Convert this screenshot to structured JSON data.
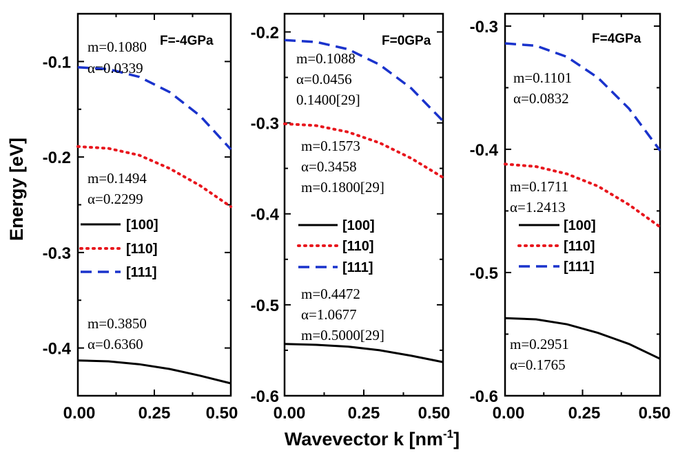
{
  "figure": {
    "ylabel": "Energy [eV]",
    "xlabel_main": "Wavevector k [nm",
    "xlabel_sup": "-1",
    "xlabel_end": "]"
  },
  "legend_entries": [
    "[100]",
    "[110]",
    "[111]"
  ],
  "colors": {
    "s100": "#000000",
    "s110": "#e8161d",
    "s111": "#1a33cc"
  },
  "chart_data": [
    {
      "type": "line",
      "title": "F=-4GPa",
      "xlim": [
        0,
        0.5
      ],
      "ylim": [
        -0.45,
        -0.05
      ],
      "xticks": [
        "0.00",
        "0.25",
        "0.50"
      ],
      "yticks": [
        "-0.1",
        "-0.2",
        "-0.3",
        "-0.4"
      ],
      "ytick_values": [
        -0.1,
        -0.2,
        -0.3,
        -0.4
      ],
      "series": [
        {
          "name": "[100]",
          "style": "solid",
          "x": [
            0,
            0.1,
            0.2,
            0.3,
            0.4,
            0.5
          ],
          "values": [
            -0.413,
            -0.414,
            -0.417,
            -0.422,
            -0.429,
            -0.437
          ]
        },
        {
          "name": "[110]",
          "style": "dotted",
          "x": [
            0,
            0.1,
            0.2,
            0.3,
            0.4,
            0.5
          ],
          "values": [
            -0.189,
            -0.191,
            -0.198,
            -0.212,
            -0.23,
            -0.252
          ]
        },
        {
          "name": "[111]",
          "style": "dashed",
          "x": [
            0,
            0.1,
            0.2,
            0.3,
            0.4,
            0.5
          ],
          "values": [
            -0.106,
            -0.108,
            -0.116,
            -0.132,
            -0.157,
            -0.192
          ]
        }
      ],
      "annotations": [
        [
          "m=0.1080",
          "α=0.0339"
        ],
        [
          "m=0.1494",
          "α=0.2299"
        ],
        [
          "m=0.3850",
          "α=0.6360"
        ]
      ]
    },
    {
      "type": "line",
      "title": "F=0GPa",
      "xlim": [
        0,
        0.5
      ],
      "ylim": [
        -0.6,
        -0.18
      ],
      "xticks": [
        "0.00",
        "0.25",
        "0.50"
      ],
      "yticks": [
        "-0.2",
        "-0.3",
        "-0.4",
        "-0.5",
        "-0.6"
      ],
      "ytick_values": [
        -0.2,
        -0.3,
        -0.4,
        -0.5,
        -0.6
      ],
      "series": [
        {
          "name": "[100]",
          "style": "solid",
          "x": [
            0,
            0.1,
            0.2,
            0.3,
            0.4,
            0.5
          ],
          "values": [
            -0.543,
            -0.544,
            -0.546,
            -0.55,
            -0.556,
            -0.563
          ]
        },
        {
          "name": "[110]",
          "style": "dotted",
          "x": [
            0,
            0.1,
            0.2,
            0.3,
            0.4,
            0.5
          ],
          "values": [
            -0.301,
            -0.303,
            -0.31,
            -0.322,
            -0.339,
            -0.36
          ]
        },
        {
          "name": "[111]",
          "style": "dashed",
          "x": [
            0,
            0.1,
            0.2,
            0.3,
            0.4,
            0.5
          ],
          "values": [
            -0.209,
            -0.211,
            -0.219,
            -0.236,
            -0.262,
            -0.298
          ]
        }
      ],
      "annotations": [
        [
          "m=0.1088",
          "α=0.0456",
          "0.1400[29]"
        ],
        [
          "m=0.1573",
          "α=0.3458",
          "m=0.1800[29]"
        ],
        [
          "m=0.4472",
          "α=1.0677",
          "m=0.5000[29]"
        ]
      ]
    },
    {
      "type": "line",
      "title": "F=4GPa",
      "xlim": [
        0,
        0.5
      ],
      "ylim": [
        -0.6,
        -0.29
      ],
      "xticks": [
        "0.00",
        "0.25",
        "0.50"
      ],
      "yticks": [
        "-0.3",
        "-0.4",
        "-0.5",
        "-0.6"
      ],
      "ytick_values": [
        -0.3,
        -0.4,
        -0.5,
        -0.6
      ],
      "series": [
        {
          "name": "[100]",
          "style": "solid",
          "x": [
            0,
            0.1,
            0.2,
            0.3,
            0.4,
            0.5
          ],
          "values": [
            -0.537,
            -0.538,
            -0.542,
            -0.549,
            -0.558,
            -0.57
          ]
        },
        {
          "name": "[110]",
          "style": "dotted",
          "x": [
            0,
            0.1,
            0.2,
            0.3,
            0.4,
            0.5
          ],
          "values": [
            -0.412,
            -0.414,
            -0.42,
            -0.43,
            -0.445,
            -0.463
          ]
        },
        {
          "name": "[111]",
          "style": "dashed",
          "x": [
            0,
            0.1,
            0.2,
            0.3,
            0.4,
            0.5
          ],
          "values": [
            -0.314,
            -0.316,
            -0.325,
            -0.342,
            -0.367,
            -0.401
          ]
        }
      ],
      "annotations": [
        [
          "m=0.1101",
          "α=0.0832"
        ],
        [
          "m=0.1711",
          "α=1.2413"
        ],
        [
          "m=0.2951",
          "α=0.1765"
        ]
      ]
    }
  ]
}
